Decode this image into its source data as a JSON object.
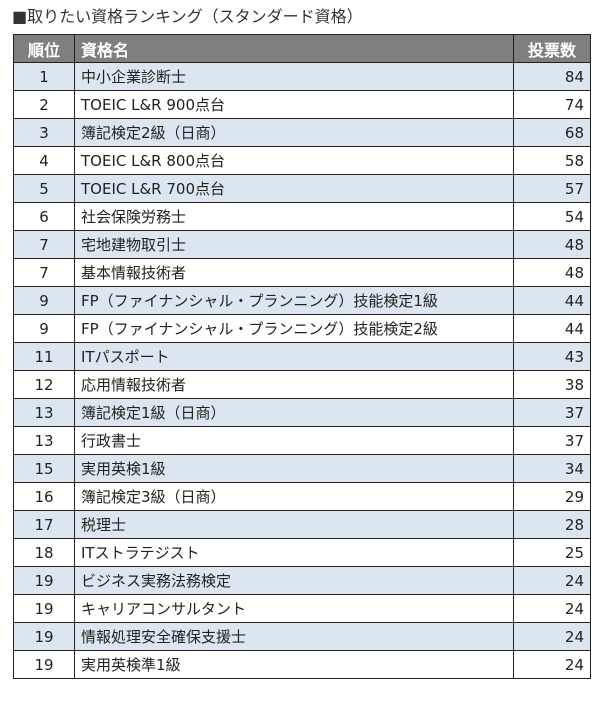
{
  "title": "■取りたい資格ランキング（スタンダード資格）",
  "colors": {
    "header_bg": "#7f7f7f",
    "header_text": "#ffffff",
    "stripe_bg": "#dce6f1",
    "border": "#222222"
  },
  "chart_data": {
    "type": "table",
    "columns": [
      "順位",
      "資格名",
      "投票数"
    ],
    "rows": [
      {
        "rank": "1",
        "name": "中小企業診断士",
        "votes": "84"
      },
      {
        "rank": "2",
        "name": "TOEIC L&R 900点台",
        "votes": "74"
      },
      {
        "rank": "3",
        "name": "簿記検定2級（日商）",
        "votes": "68"
      },
      {
        "rank": "4",
        "name": "TOEIC L&R 800点台",
        "votes": "58"
      },
      {
        "rank": "5",
        "name": "TOEIC L&R 700点台",
        "votes": "57"
      },
      {
        "rank": "6",
        "name": "社会保険労務士",
        "votes": "54"
      },
      {
        "rank": "7",
        "name": "宅地建物取引士",
        "votes": "48"
      },
      {
        "rank": "7",
        "name": "基本情報技術者",
        "votes": "48"
      },
      {
        "rank": "9",
        "name": "FP（ファイナンシャル・プランニング）技能検定1級",
        "votes": "44"
      },
      {
        "rank": "9",
        "name": "FP（ファイナンシャル・プランニング）技能検定2級",
        "votes": "44"
      },
      {
        "rank": "11",
        "name": "ITパスポート",
        "votes": "43"
      },
      {
        "rank": "12",
        "name": "応用情報技術者",
        "votes": "38"
      },
      {
        "rank": "13",
        "name": "簿記検定1級（日商）",
        "votes": "37"
      },
      {
        "rank": "13",
        "name": "行政書士",
        "votes": "37"
      },
      {
        "rank": "15",
        "name": "実用英検1級",
        "votes": "34"
      },
      {
        "rank": "16",
        "name": "簿記検定3級（日商）",
        "votes": "29"
      },
      {
        "rank": "17",
        "name": "税理士",
        "votes": "28"
      },
      {
        "rank": "18",
        "name": "ITストラテジスト",
        "votes": "25"
      },
      {
        "rank": "19",
        "name": "ビジネス実務法務検定",
        "votes": "24"
      },
      {
        "rank": "19",
        "name": "キャリアコンサルタント",
        "votes": "24"
      },
      {
        "rank": "19",
        "name": "情報処理安全確保支援士",
        "votes": "24"
      },
      {
        "rank": "19",
        "name": "実用英検準1級",
        "votes": "24"
      }
    ]
  }
}
